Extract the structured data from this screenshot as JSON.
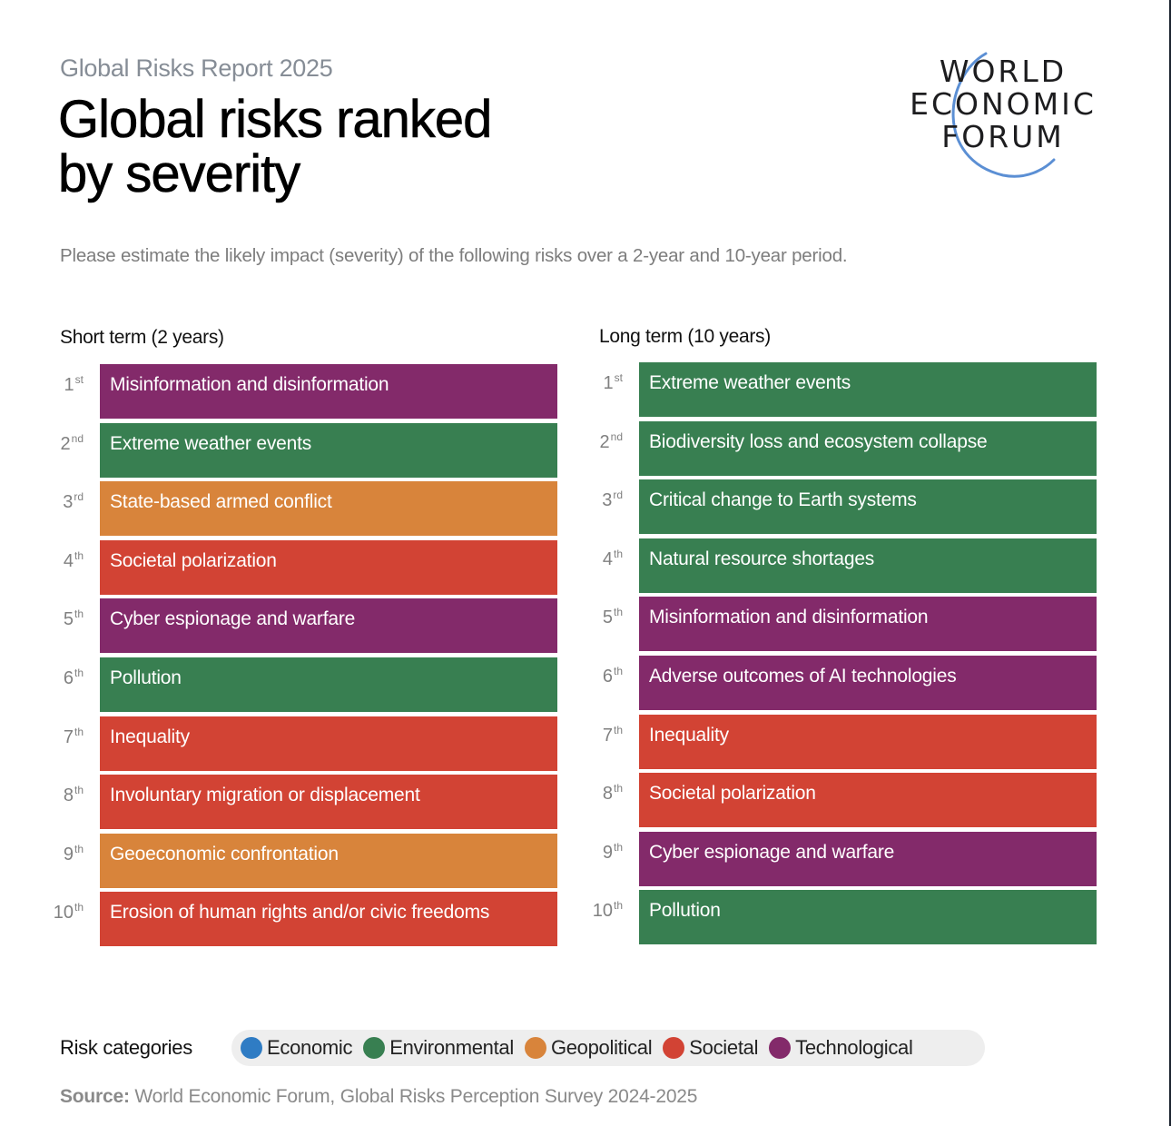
{
  "header": {
    "report_name": "Global Risks Report 2025",
    "title_line1": "Global risks ranked",
    "title_line2": "by severity",
    "subtitle": "Please estimate the likely impact (severity) of the following risks over a 2-year and 10-year period."
  },
  "logo": {
    "line1": "WORLD",
    "line2": "ECONOMIC",
    "line3": "FORUM",
    "arc_color": "#5b8fd4"
  },
  "colors": {
    "Economic": "#2f7cc4",
    "Environmental": "#387f51",
    "Geopolitical": "#d8843b",
    "Societal": "#d24334",
    "Technological": "#832a6a"
  },
  "chart_data": {
    "type": "table",
    "title": "Global risks ranked by severity",
    "columns": [
      {
        "key": "short_term",
        "header": "Short term (2 years)",
        "rows": [
          {
            "rank": 1,
            "rank_num": "1",
            "suffix": "st",
            "risk": "Misinformation and disinformation",
            "category": "Technological"
          },
          {
            "rank": 2,
            "rank_num": "2",
            "suffix": "nd",
            "risk": "Extreme weather events",
            "category": "Environmental"
          },
          {
            "rank": 3,
            "rank_num": "3",
            "suffix": "rd",
            "risk": "State-based armed conflict",
            "category": "Geopolitical"
          },
          {
            "rank": 4,
            "rank_num": "4",
            "suffix": "th",
            "risk": "Societal polarization",
            "category": "Societal"
          },
          {
            "rank": 5,
            "rank_num": "5",
            "suffix": "th",
            "risk": "Cyber espionage and warfare",
            "category": "Technological"
          },
          {
            "rank": 6,
            "rank_num": "6",
            "suffix": "th",
            "risk": "Pollution",
            "category": "Environmental"
          },
          {
            "rank": 7,
            "rank_num": "7",
            "suffix": "th",
            "risk": "Inequality",
            "category": "Societal"
          },
          {
            "rank": 8,
            "rank_num": "8",
            "suffix": "th",
            "risk": "Involuntary migration or displacement",
            "category": "Societal"
          },
          {
            "rank": 9,
            "rank_num": "9",
            "suffix": "th",
            "risk": "Geoeconomic confrontation",
            "category": "Geopolitical"
          },
          {
            "rank": 10,
            "rank_num": "10",
            "suffix": "th",
            "risk": "Erosion of human rights and/or civic freedoms",
            "category": "Societal"
          }
        ]
      },
      {
        "key": "long_term",
        "header": "Long term (10 years)",
        "rows": [
          {
            "rank": 1,
            "rank_num": "1",
            "suffix": "st",
            "risk": "Extreme weather events",
            "category": "Environmental"
          },
          {
            "rank": 2,
            "rank_num": "2",
            "suffix": "nd",
            "risk": "Biodiversity loss and ecosystem collapse",
            "category": "Environmental"
          },
          {
            "rank": 3,
            "rank_num": "3",
            "suffix": "rd",
            "risk": "Critical change to Earth systems",
            "category": "Environmental"
          },
          {
            "rank": 4,
            "rank_num": "4",
            "suffix": "th",
            "risk": "Natural resource shortages",
            "category": "Environmental"
          },
          {
            "rank": 5,
            "rank_num": "5",
            "suffix": "th",
            "risk": "Misinformation and disinformation",
            "category": "Technological"
          },
          {
            "rank": 6,
            "rank_num": "6",
            "suffix": "th",
            "risk": "Adverse outcomes of AI technologies",
            "category": "Technological"
          },
          {
            "rank": 7,
            "rank_num": "7",
            "suffix": "th",
            "risk": "Inequality",
            "category": "Societal"
          },
          {
            "rank": 8,
            "rank_num": "8",
            "suffix": "th",
            "risk": "Societal polarization",
            "category": "Societal"
          },
          {
            "rank": 9,
            "rank_num": "9",
            "suffix": "th",
            "risk": "Cyber espionage and warfare",
            "category": "Technological"
          },
          {
            "rank": 10,
            "rank_num": "10",
            "suffix": "th",
            "risk": "Pollution",
            "category": "Environmental"
          }
        ]
      }
    ],
    "legend": {
      "title": "Risk categories",
      "items": [
        "Economic",
        "Environmental",
        "Geopolitical",
        "Societal",
        "Technological"
      ],
      "placement": "bottom"
    }
  },
  "footer": {
    "source_label": "Source:",
    "source_text": " World Economic Forum, Global Risks Perception Survey 2024-2025"
  }
}
